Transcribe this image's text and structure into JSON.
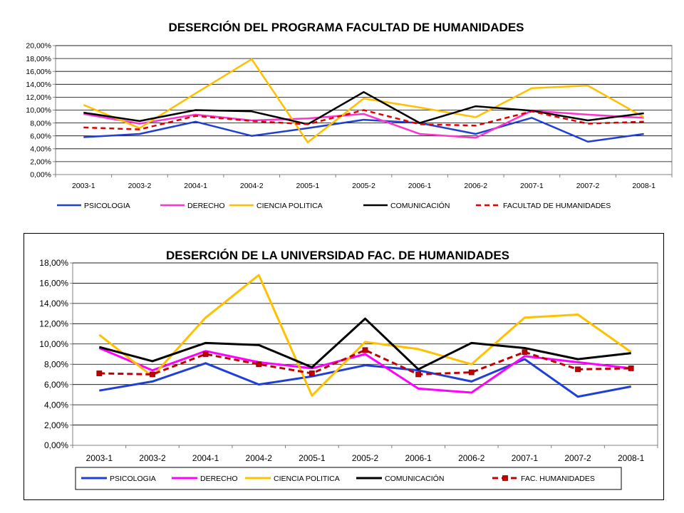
{
  "chart_data": [
    {
      "type": "line",
      "title": "DESERCIÓN DEL PROGRAMA FACULTAD DE HUMANIDADES",
      "xlabel": "",
      "ylabel": "",
      "categories": [
        "2003-1",
        "2003-2",
        "2004-1",
        "2004-2",
        "2005-1",
        "2005-2",
        "2006-1",
        "2006-2",
        "2007-1",
        "2007-2",
        "2008-1"
      ],
      "y_tick_labels": [
        "0,00%",
        "2,00%",
        "4,00%",
        "6,00%",
        "8,00%",
        "10,00%",
        "12,00%",
        "14,00%",
        "16,00%",
        "18,00%",
        "20,00%"
      ],
      "ylim": [
        0,
        20
      ],
      "grid": true,
      "legend_position": "bottom",
      "series": [
        {
          "name": "PSICOLOGIA",
          "color": "#1f3fd6",
          "dash": false,
          "marker": false,
          "values": [
            5.8,
            6.3,
            8.2,
            6.0,
            7.2,
            8.5,
            8.0,
            6.3,
            8.8,
            5.1,
            6.3
          ]
        },
        {
          "name": "DERECHO",
          "color": "#ff33cc",
          "dash": false,
          "marker": false,
          "values": [
            9.4,
            7.9,
            9.3,
            8.4,
            8.7,
            9.4,
            6.3,
            5.7,
            9.9,
            9.3,
            8.8
          ]
        },
        {
          "name": "CIENCIA POLITICA",
          "color": "#ffc000",
          "dash": false,
          "marker": false,
          "values": [
            10.8,
            7.2,
            12.6,
            17.9,
            5.0,
            11.8,
            10.4,
            8.9,
            13.4,
            13.8,
            8.9
          ]
        },
        {
          "name": "COMUNICACIÓN",
          "color": "#000000",
          "dash": false,
          "marker": false,
          "values": [
            9.6,
            8.3,
            10.0,
            9.8,
            7.8,
            12.8,
            8.0,
            10.6,
            9.9,
            8.4,
            9.5
          ]
        },
        {
          "name": "FACULTAD DE HUMANIDADES",
          "color": "#e00000",
          "dash": true,
          "marker": false,
          "values": [
            7.3,
            7.0,
            9.1,
            8.3,
            7.8,
            10.0,
            7.8,
            7.6,
            9.8,
            7.9,
            8.2
          ]
        }
      ]
    },
    {
      "type": "line",
      "title": "DESERCIÓN DE LA UNIVERSIDAD FAC. DE HUMANIDADES",
      "xlabel": "",
      "ylabel": "",
      "categories": [
        "2003-1",
        "2003-2",
        "2004-1",
        "2004-2",
        "2005-1",
        "2005-2",
        "2006-1",
        "2006-2",
        "2007-1",
        "2007-2",
        "2008-1"
      ],
      "y_tick_labels": [
        "0,00%",
        "2,00%",
        "4,00%",
        "6,00%",
        "8,00%",
        "10,00%",
        "12,00%",
        "14,00%",
        "16,00%",
        "18,00%"
      ],
      "ylim": [
        0,
        18
      ],
      "grid": true,
      "legend_position": "bottom",
      "series": [
        {
          "name": "PSICOLOGIA",
          "color": "#1f3fd6",
          "dash": false,
          "marker": false,
          "values": [
            5.4,
            6.3,
            8.1,
            6.0,
            6.8,
            7.9,
            7.4,
            6.3,
            8.5,
            4.8,
            5.8
          ]
        },
        {
          "name": "DERECHO",
          "color": "#ff00ff",
          "dash": false,
          "marker": false,
          "values": [
            9.6,
            7.4,
            9.3,
            8.2,
            7.6,
            9.0,
            5.6,
            5.2,
            8.8,
            8.2,
            7.6
          ]
        },
        {
          "name": "CIENCIA POLITICA",
          "color": "#ffc000",
          "dash": false,
          "marker": false,
          "values": [
            10.9,
            6.8,
            12.6,
            16.8,
            4.9,
            10.2,
            9.5,
            8.0,
            12.6,
            12.9,
            9.2
          ]
        },
        {
          "name": "COMUNICACIÓN",
          "color": "#000000",
          "dash": false,
          "marker": false,
          "values": [
            9.7,
            8.3,
            10.1,
            9.9,
            7.7,
            12.5,
            7.5,
            10.1,
            9.6,
            8.5,
            9.1
          ]
        },
        {
          "name": "FAC. HUMANIDADES",
          "color": "#c00000",
          "dash": true,
          "marker": true,
          "values": [
            7.1,
            7.0,
            9.0,
            8.0,
            7.1,
            9.4,
            7.0,
            7.2,
            9.2,
            7.5,
            7.6
          ]
        }
      ]
    }
  ]
}
